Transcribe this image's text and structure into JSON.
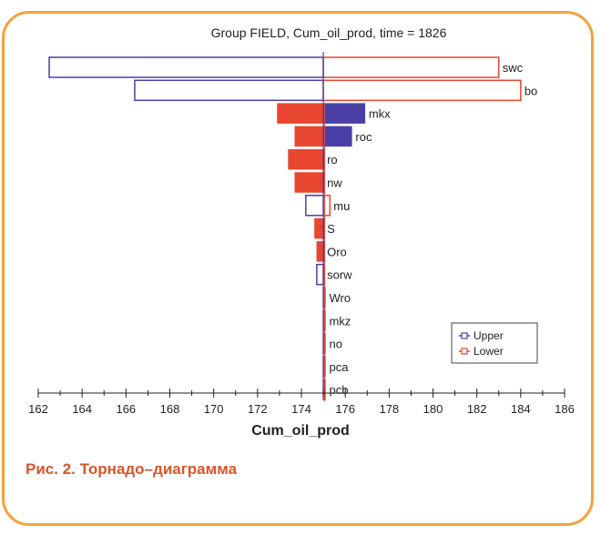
{
  "chart_data": {
    "type": "bar",
    "orientation": "horizontal-tornado",
    "title": "Group FIELD, Cum_oil_prod, time = 1826",
    "xlabel": "Cum_oil_prod",
    "ylabel": "",
    "base": 175,
    "xlim": [
      162,
      186
    ],
    "xticks": [
      162,
      164,
      166,
      168,
      170,
      172,
      174,
      176,
      178,
      180,
      182,
      184,
      186
    ],
    "grid": false,
    "legend_position": "bottom-right",
    "categories": [
      "swc",
      "bo",
      "mkx",
      "roc",
      "ro",
      "nw",
      "mu",
      "S",
      "Oro",
      "sorw",
      "Wro",
      "mkz",
      "no",
      "pca",
      "pcb"
    ],
    "series": [
      {
        "name": "Upper",
        "color": "#4a3fa6",
        "values": [
          162.5,
          166.4,
          176.9,
          176.3,
          175,
          175,
          174.2,
          175,
          175,
          174.7,
          175,
          175,
          175,
          175,
          175
        ],
        "filled": [
          false,
          false,
          true,
          true,
          false,
          false,
          false,
          false,
          false,
          false,
          false,
          false,
          false,
          false,
          false
        ]
      },
      {
        "name": "Lower",
        "color": "#e8462e",
        "values": [
          183,
          184,
          172.9,
          173.7,
          173.4,
          173.7,
          175.3,
          174.6,
          174.7,
          175,
          175.1,
          175.1,
          175.1,
          175.1,
          175.1
        ],
        "filled": [
          false,
          false,
          true,
          true,
          true,
          true,
          false,
          true,
          true,
          false,
          true,
          true,
          true,
          true,
          true
        ]
      }
    ]
  },
  "caption": "Рис. 2. Торнадо–диаграмма"
}
